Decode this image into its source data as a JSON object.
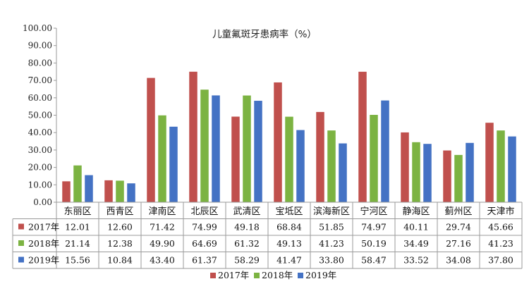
{
  "chart_data": {
    "type": "bar",
    "title": "儿童氟斑牙患病率（%）",
    "categories": [
      "东丽区",
      "西青区",
      "津南区",
      "北辰区",
      "武清区",
      "宝坻区",
      "滨海新区",
      "宁河区",
      "静海区",
      "蓟州区",
      "天津市"
    ],
    "series": [
      {
        "name": "2017年",
        "color": "#c0504d",
        "values": [
          12.01,
          12.6,
          71.42,
          74.99,
          49.18,
          68.84,
          51.85,
          74.97,
          40.11,
          29.74,
          45.66
        ],
        "labels": [
          "12.01",
          "12.60",
          "71.42",
          "74.99",
          "49.18",
          "68.84",
          "51.85",
          "74.97",
          "40.11",
          "29.74",
          "45.66"
        ]
      },
      {
        "name": "2018年",
        "color": "#7cb342",
        "values": [
          21.14,
          12.38,
          49.9,
          64.69,
          61.32,
          49.13,
          41.23,
          50.19,
          34.49,
          27.16,
          41.23
        ],
        "labels": [
          "21.14",
          "12.38",
          "49.90",
          "64.69",
          "61.32",
          "49.13",
          "41.23",
          "50.19",
          "34.49",
          "27.16",
          "41.23"
        ]
      },
      {
        "name": "2019年",
        "color": "#4472c4",
        "values": [
          15.56,
          10.84,
          43.4,
          61.37,
          58.29,
          41.47,
          33.8,
          58.47,
          33.52,
          34.08,
          37.8
        ],
        "labels": [
          "15.56",
          "10.84",
          "43.40",
          "61.37",
          "58.29",
          "41.47",
          "33.80",
          "58.47",
          "33.52",
          "34.08",
          "37.80"
        ]
      }
    ],
    "ylim": [
      0,
      100
    ],
    "yticks": [
      "0.00",
      "10.00",
      "20.00",
      "30.00",
      "40.00",
      "50.00",
      "60.00",
      "70.00",
      "80.00",
      "90.00",
      "100.00"
    ],
    "grid": false,
    "legend": "bottom-center",
    "data_table": true
  }
}
